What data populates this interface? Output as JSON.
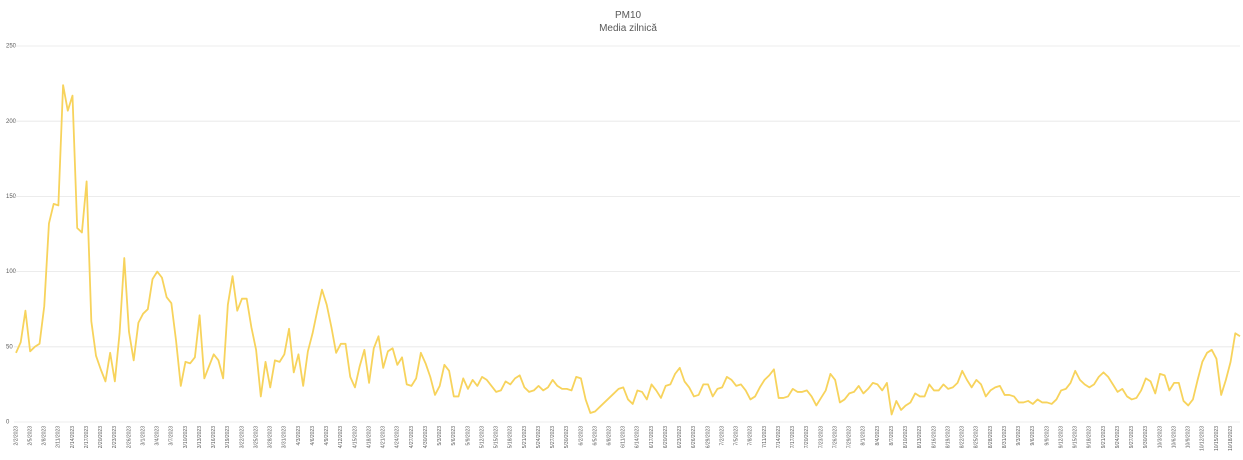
{
  "chart_data": {
    "type": "line",
    "title": "PM10",
    "subtitle": "Media zilnică",
    "color": "#f7d35c",
    "grid": true,
    "ylim": [
      0,
      250
    ],
    "yticks": [
      0,
      50,
      100,
      150,
      200,
      250
    ],
    "categories": [
      "2/2/2023",
      null,
      null,
      "2/5/2023",
      null,
      null,
      "2/8/2023",
      null,
      null,
      "2/11/2023",
      null,
      null,
      "2/14/2023",
      null,
      null,
      "2/17/2023",
      null,
      null,
      "2/20/2023",
      null,
      null,
      "2/23/2023",
      null,
      null,
      "2/26/2023",
      null,
      null,
      "3/1/2023",
      null,
      null,
      "3/4/2023",
      null,
      null,
      "3/7/2023",
      null,
      null,
      "3/10/2023",
      null,
      null,
      "3/13/2023",
      null,
      null,
      "3/16/2023",
      null,
      null,
      "3/19/2023",
      null,
      null,
      "3/22/2023",
      null,
      null,
      "3/25/2023",
      null,
      null,
      "3/28/2023",
      null,
      null,
      "3/31/2023",
      null,
      null,
      "4/3/2023",
      null,
      null,
      "4/6/2023",
      null,
      null,
      "4/9/2023",
      null,
      null,
      "4/12/2023",
      null,
      null,
      "4/15/2023",
      null,
      null,
      "4/18/2023",
      null,
      null,
      "4/21/2023",
      null,
      null,
      "4/24/2023",
      null,
      null,
      "4/27/2023",
      null,
      null,
      "4/30/2023",
      null,
      null,
      "5/3/2023",
      null,
      null,
      "5/6/2023",
      null,
      null,
      "5/9/2023",
      null,
      null,
      "5/12/2023",
      null,
      null,
      "5/15/2023",
      null,
      null,
      "5/18/2023",
      null,
      null,
      "5/21/2023",
      null,
      null,
      "5/24/2023",
      null,
      null,
      "5/27/2023",
      null,
      null,
      "5/30/2023",
      null,
      null,
      "6/2/2023",
      null,
      null,
      "6/5/2023",
      null,
      null,
      "6/8/2023",
      null,
      null,
      "6/11/2023",
      null,
      null,
      "6/14/2023",
      null,
      null,
      "6/17/2023",
      null,
      null,
      "6/20/2023",
      null,
      null,
      "6/23/2023",
      null,
      null,
      "6/26/2023",
      null,
      null,
      "6/29/2023",
      null,
      null,
      "7/2/2023",
      null,
      null,
      "7/5/2023",
      null,
      null,
      "7/8/2023",
      null,
      null,
      "7/11/2023",
      null,
      null,
      "7/14/2023",
      null,
      null,
      "7/17/2023",
      null,
      null,
      "7/20/2023",
      null,
      null,
      "7/23/2023",
      null,
      null,
      "7/26/2023",
      null,
      null,
      "7/29/2023",
      null,
      null,
      "8/1/2023",
      null,
      null,
      "8/4/2023",
      null,
      null,
      "8/7/2023",
      null,
      null,
      "8/10/2023",
      null,
      null,
      "8/13/2023",
      null,
      null,
      "8/16/2023",
      null,
      null,
      "8/19/2023",
      null,
      null,
      "8/22/2023",
      null,
      null,
      "8/25/2023",
      null,
      null,
      "8/28/2023",
      null,
      null,
      "8/31/2023",
      null,
      null,
      "9/3/2023",
      null,
      null,
      "9/6/2023",
      null,
      null,
      "9/9/2023",
      null,
      null,
      "9/12/2023",
      null,
      null,
      "9/15/2023",
      null,
      null,
      "9/18/2023",
      null,
      null,
      "9/21/2023",
      null,
      null,
      "9/24/2023",
      null,
      null,
      "9/27/2023",
      null,
      null,
      "9/30/2023",
      null,
      null,
      "10/3/2023",
      null,
      null,
      "10/6/2023",
      null,
      null,
      "10/9/2023",
      null,
      null,
      "10/12/2023",
      null,
      null,
      "10/15/2023",
      null,
      null,
      "10/18/2023",
      null,
      null
    ],
    "values": [
      46,
      53,
      74,
      47,
      50,
      52,
      77,
      132,
      145,
      144,
      224,
      207,
      217,
      129,
      126,
      160,
      67,
      44,
      35,
      27,
      46,
      27,
      59,
      109,
      60,
      41,
      66,
      72,
      75,
      95,
      100,
      96,
      83,
      79,
      54,
      24,
      40,
      39,
      43,
      71,
      29,
      37,
      45,
      41,
      29,
      78,
      97,
      74,
      82,
      82,
      63,
      48,
      17,
      40,
      23,
      41,
      40,
      45,
      62,
      33,
      45,
      24,
      47,
      59,
      74,
      88,
      78,
      63,
      46,
      52,
      52,
      30,
      23,
      37,
      48,
      26,
      49,
      57,
      36,
      47,
      49,
      38,
      43,
      25,
      24,
      29,
      46,
      39,
      30,
      18,
      24,
      38,
      34,
      17,
      17,
      29,
      22,
      28,
      24,
      30,
      28,
      24,
      20,
      21,
      27,
      25,
      29,
      31,
      23,
      20,
      21,
      24,
      21,
      23,
      28,
      24,
      22,
      22,
      21,
      30,
      29,
      15,
      6,
      7,
      10,
      13,
      16,
      19,
      22,
      23,
      15,
      12,
      21,
      20,
      15,
      25,
      21,
      16,
      24,
      25,
      32,
      36,
      27,
      23,
      17,
      18,
      25,
      25,
      17,
      22,
      23,
      30,
      28,
      24,
      25,
      21,
      15,
      17,
      23,
      28,
      31,
      35,
      16,
      16,
      17,
      22,
      20,
      20,
      21,
      17,
      11,
      16,
      21,
      32,
      28,
      13,
      15,
      19,
      20,
      24,
      19,
      22,
      26,
      25,
      21,
      26,
      5,
      14,
      8,
      11,
      13,
      19,
      17,
      17,
      25,
      21,
      21,
      25,
      22,
      23,
      26,
      34,
      28,
      23,
      28,
      25,
      17,
      21,
      23,
      24,
      18,
      18,
      17,
      13,
      13,
      14,
      12,
      15,
      13,
      13,
      12,
      15,
      21,
      22,
      26,
      34,
      28,
      25,
      23,
      25,
      30,
      33,
      30,
      25,
      20,
      22,
      17,
      15,
      16,
      21,
      29,
      27,
      19,
      32,
      31,
      21,
      26,
      26,
      14,
      11,
      15,
      28,
      40,
      46,
      48,
      42,
      18,
      28,
      40,
      59,
      57
    ]
  }
}
